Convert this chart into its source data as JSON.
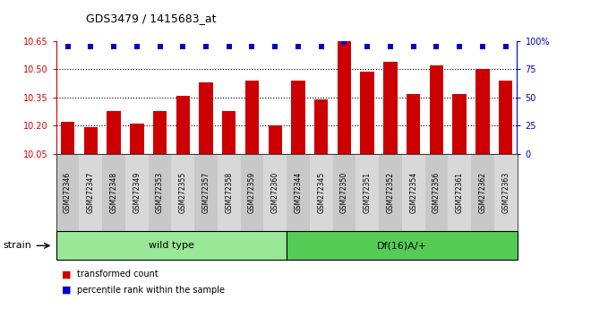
{
  "title": "GDS3479 / 1415683_at",
  "samples": [
    "GSM272346",
    "GSM272347",
    "GSM272348",
    "GSM272349",
    "GSM272353",
    "GSM272355",
    "GSM272357",
    "GSM272358",
    "GSM272359",
    "GSM272360",
    "GSM272344",
    "GSM272345",
    "GSM272350",
    "GSM272351",
    "GSM272352",
    "GSM272354",
    "GSM272356",
    "GSM272361",
    "GSM272362",
    "GSM272363"
  ],
  "red_values": [
    10.22,
    10.19,
    10.28,
    10.21,
    10.28,
    10.36,
    10.43,
    10.28,
    10.44,
    10.2,
    10.44,
    10.34,
    10.65,
    10.49,
    10.54,
    10.37,
    10.52,
    10.37,
    10.5,
    10.44
  ],
  "blue_values": [
    95,
    95,
    95,
    95,
    95,
    95,
    95,
    95,
    95,
    95,
    95,
    95,
    99,
    95,
    95,
    95,
    95,
    95,
    95,
    95
  ],
  "ylim_left": [
    10.05,
    10.65
  ],
  "ylim_right": [
    0,
    100
  ],
  "yticks_left": [
    10.05,
    10.2,
    10.35,
    10.5,
    10.65
  ],
  "yticks_right": [
    0,
    25,
    50,
    75,
    100
  ],
  "ytick_labels_right": [
    "0",
    "25",
    "50",
    "75",
    "100%"
  ],
  "grid_vals": [
    10.2,
    10.35,
    10.5
  ],
  "wild_type_count": 10,
  "df_count": 10,
  "strain_label": "strain",
  "group1_label": "wild type",
  "group2_label": "Df(16)A/+",
  "legend1": "transformed count",
  "legend2": "percentile rank within the sample",
  "bar_color": "#CC0000",
  "dot_color": "#0000CC",
  "bg_color": "#FFFFFF",
  "bar_bottom": 10.05,
  "wt_green": "#98E898",
  "df_green": "#55CC55",
  "gray_even": "#C8C8C8",
  "gray_odd": "#D8D8D8"
}
